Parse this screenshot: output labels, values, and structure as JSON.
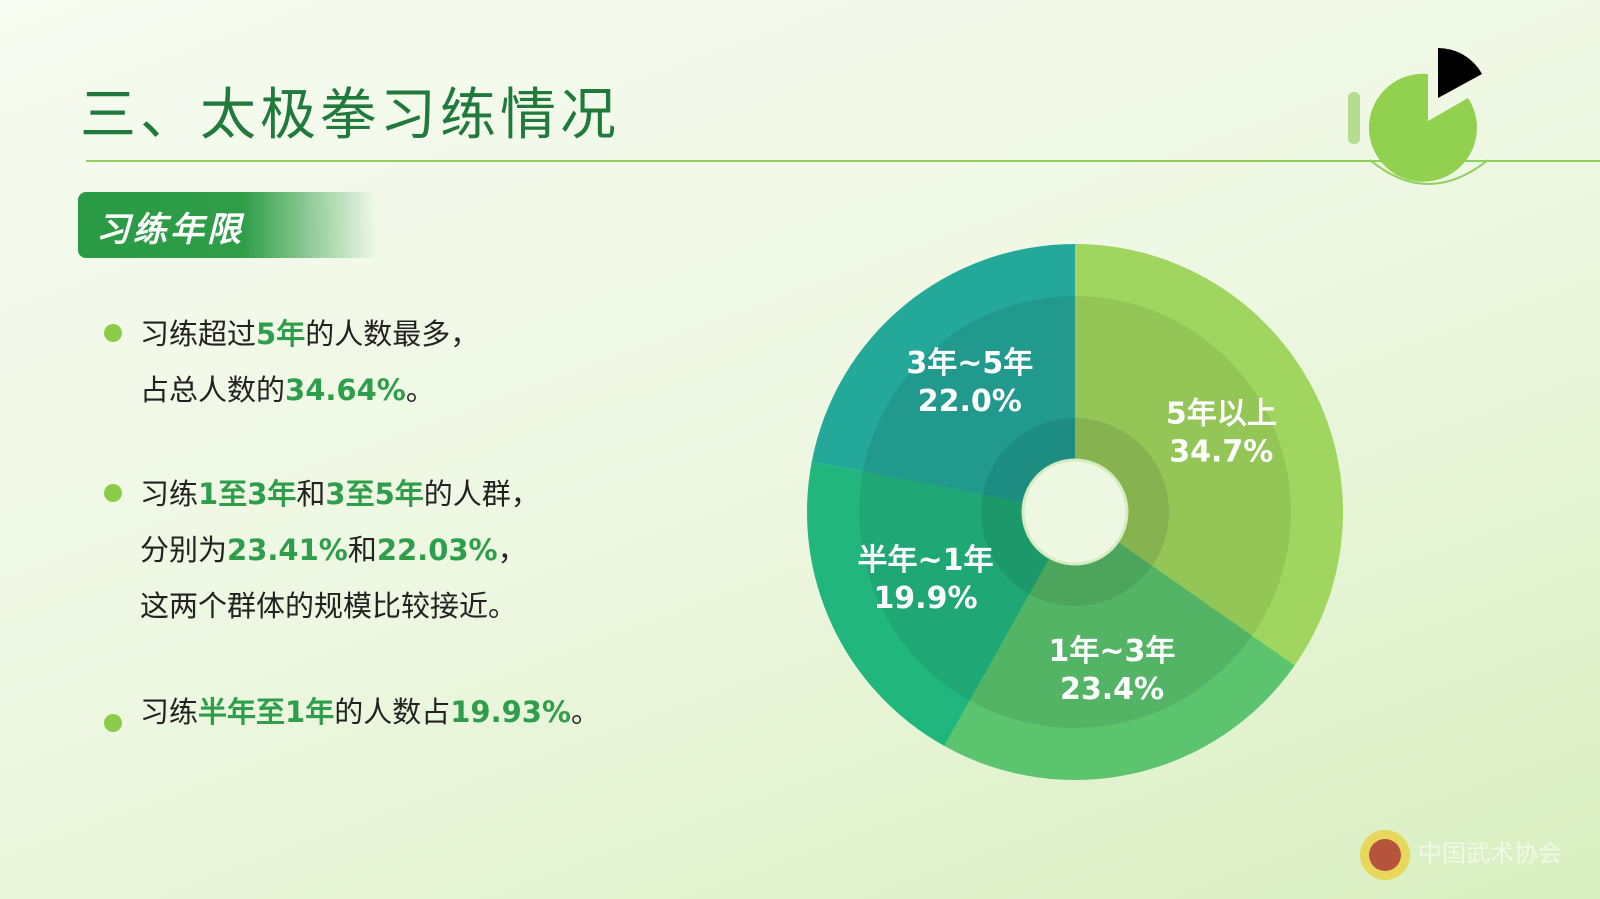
{
  "header": {
    "title": "三、太极拳习练情况"
  },
  "section": {
    "tag": "习练年限"
  },
  "bullets": [
    {
      "lines": [
        [
          "习练超过",
          ""
        ],
        [
          "5年",
          "hl"
        ],
        [
          "的人数最多，",
          ""
        ]
      ],
      "line2": [
        [
          "占总人数的",
          ""
        ],
        [
          "34.64%",
          "hl"
        ],
        [
          "。",
          ""
        ]
      ]
    },
    {
      "lines": [
        [
          "习练",
          ""
        ],
        [
          "1至3年",
          "hl"
        ],
        [
          "和",
          ""
        ],
        [
          "3至5年",
          "hl"
        ],
        [
          "的人群，",
          ""
        ]
      ],
      "line2": [
        [
          "分别为",
          ""
        ],
        [
          "23.41%",
          "hl"
        ],
        [
          "和",
          ""
        ],
        [
          "22.03%",
          "hl"
        ],
        [
          "，",
          ""
        ]
      ],
      "line3": [
        [
          "这两个群体的规模比较接近。",
          ""
        ]
      ]
    },
    {
      "lines": [
        [
          "习练",
          ""
        ],
        [
          "半年至1年",
          "hl"
        ],
        [
          "的人数占",
          ""
        ],
        [
          "19.93%",
          "hl"
        ],
        [
          "。",
          ""
        ]
      ]
    }
  ],
  "watermark": "中国武术协会",
  "colors": {
    "accent": "#2e9e4a",
    "s1": "#a0d65f",
    "s2": "#5cc46e",
    "s3": "#22b67f",
    "s4": "#24a89a"
  },
  "chart_data": {
    "type": "pie",
    "donut": true,
    "title": "",
    "categories": [
      "5年以上",
      "1年~3年",
      "半年~1年",
      "3年~5年"
    ],
    "values": [
      34.7,
      23.4,
      19.9,
      22.0
    ],
    "labels": [
      "34.7%",
      "23.4%",
      "19.9%",
      "22.0%"
    ],
    "colors": [
      "#a0d65f",
      "#5cc46e",
      "#22b67f",
      "#24a89a"
    ],
    "start": "top",
    "direction": "clockwise",
    "legend": "none"
  }
}
